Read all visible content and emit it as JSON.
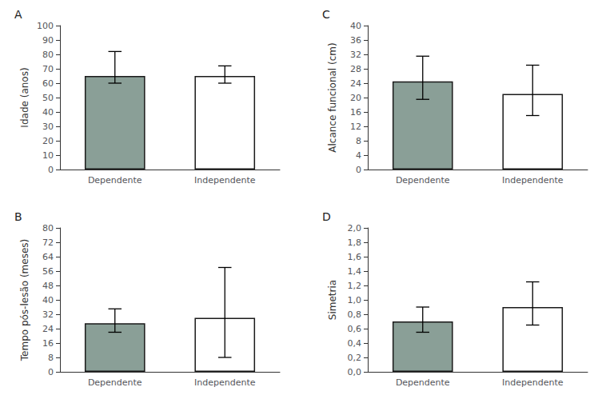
{
  "chart_data": [
    {
      "type": "bar",
      "title": "A",
      "ylabel": "Idade (anos)",
      "categories": [
        "Dependente",
        "Independente"
      ],
      "values": [
        65,
        65
      ],
      "errors_upper": [
        17,
        7
      ],
      "errors_lower": [
        5,
        5
      ],
      "colors": [
        "#8a9f97",
        "#ffffff"
      ],
      "ylim": [
        0,
        100
      ],
      "yticks": [
        0,
        10,
        20,
        30,
        40,
        50,
        60,
        70,
        80,
        90,
        100
      ],
      "grid": false
    },
    {
      "type": "bar",
      "title": "C",
      "ylabel": "Alcance funcional (cm)",
      "categories": [
        "Dependente",
        "Independente"
      ],
      "values": [
        24.5,
        21
      ],
      "errors_upper": [
        7,
        8
      ],
      "errors_lower": [
        5,
        6
      ],
      "colors": [
        "#8a9f97",
        "#ffffff"
      ],
      "ylim": [
        0,
        40
      ],
      "yticks": [
        0,
        4,
        8,
        12,
        16,
        20,
        24,
        28,
        32,
        36,
        40
      ],
      "grid": false
    },
    {
      "type": "bar",
      "title": "B",
      "ylabel": "Tempo pós-lesão (meses)",
      "categories": [
        "Dependente",
        "Independente"
      ],
      "values": [
        27,
        30
      ],
      "errors_upper": [
        8,
        28
      ],
      "errors_lower": [
        5,
        22
      ],
      "colors": [
        "#8a9f97",
        "#ffffff"
      ],
      "ylim": [
        0,
        80
      ],
      "yticks": [
        0,
        8,
        16,
        24,
        32,
        40,
        48,
        56,
        64,
        72,
        80
      ],
      "grid": false
    },
    {
      "type": "bar",
      "title": "D",
      "ylabel": "Simetria",
      "categories": [
        "Dependente",
        "Independente"
      ],
      "values": [
        0.7,
        0.9
      ],
      "errors_upper": [
        0.2,
        0.35
      ],
      "errors_lower": [
        0.15,
        0.25
      ],
      "colors": [
        "#8a9f97",
        "#ffffff"
      ],
      "ylim": [
        0,
        2.0
      ],
      "yticks": [
        {
          "value": 0.0,
          "label": "0,0"
        },
        {
          "value": 0.2,
          "label": "0,2"
        },
        {
          "value": 0.4,
          "label": "0,4"
        },
        {
          "value": 0.6,
          "label": "0,6"
        },
        {
          "value": 0.8,
          "label": "0,8"
        },
        {
          "value": 1.0,
          "label": "1,0"
        },
        {
          "value": 1.2,
          "label": "1,2"
        },
        {
          "value": 1.4,
          "label": "1,4"
        },
        {
          "value": 1.6,
          "label": "1,6"
        },
        {
          "value": 1.8,
          "label": "1,8"
        },
        {
          "value": 2.0,
          "label": "2,0"
        }
      ],
      "grid": false
    }
  ]
}
